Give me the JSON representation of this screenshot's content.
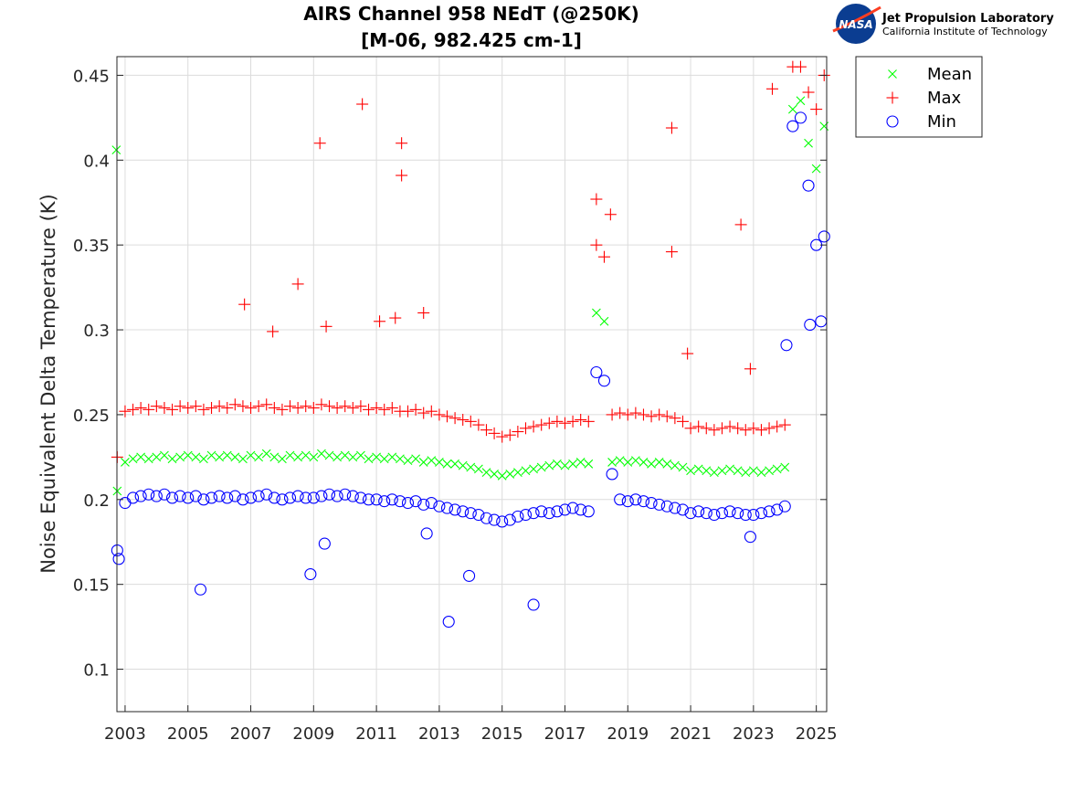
{
  "logo": {
    "line1": "Jet Propulsion Laboratory",
    "line2": "California Institute of Technology",
    "badge": "NASA"
  },
  "chart_data": {
    "type": "scatter",
    "title": [
      "AIRS Channel 958 NEdT (@250K)",
      "[M-06, 982.425 cm-1]"
    ],
    "xlabel": "",
    "ylabel": "Noise Equivalent Delta Temperature (K)",
    "xlim": [
      2002.74,
      2025.33
    ],
    "ylim": [
      0.075,
      0.461
    ],
    "xticks": [
      2003,
      2005,
      2007,
      2009,
      2011,
      2013,
      2015,
      2017,
      2019,
      2021,
      2023,
      2025
    ],
    "yticks": [
      0.1,
      0.15,
      0.2,
      0.25,
      0.3,
      0.35,
      0.4,
      0.45
    ],
    "ytick_labels": [
      "0.1",
      "0.15",
      "0.2",
      "0.25",
      "0.3",
      "0.35",
      "0.4",
      "0.45"
    ],
    "grid": true,
    "legend_placement": "outside-top-right",
    "x": [
      2002.75,
      2003,
      2003.25,
      2003.5,
      2003.75,
      2004,
      2004.25,
      2004.5,
      2004.75,
      2005,
      2005.25,
      2005.5,
      2005.75,
      2006,
      2006.25,
      2006.5,
      2006.75,
      2007,
      2007.25,
      2007.5,
      2007.75,
      2008,
      2008.25,
      2008.5,
      2008.75,
      2009,
      2009.25,
      2009.5,
      2009.75,
      2010,
      2010.25,
      2010.5,
      2010.75,
      2011,
      2011.25,
      2011.5,
      2011.75,
      2012,
      2012.25,
      2012.5,
      2012.75,
      2013,
      2013.25,
      2013.5,
      2013.75,
      2014,
      2014.25,
      2014.5,
      2014.75,
      2015,
      2015.25,
      2015.5,
      2015.75,
      2016,
      2016.25,
      2016.5,
      2016.75,
      2017,
      2017.25,
      2017.5,
      2017.75,
      2018,
      2018.25,
      2018.5,
      2018.75,
      2019,
      2019.25,
      2019.5,
      2019.75,
      2020,
      2020.25,
      2020.5,
      2020.75,
      2021,
      2021.25,
      2021.5,
      2021.75,
      2022,
      2022.25,
      2022.5,
      2022.75,
      2023,
      2023.25,
      2023.5,
      2023.75,
      2024,
      2024.25,
      2024.5,
      2024.75,
      2025,
      2025.25
    ],
    "series": [
      {
        "name": "Mean",
        "marker": "x",
        "color": "#00ff00",
        "values": [
          0.205,
          0.222,
          0.224,
          0.225,
          0.224,
          0.225,
          0.226,
          0.224,
          0.225,
          0.226,
          0.225,
          0.224,
          0.226,
          0.225,
          0.226,
          0.225,
          0.224,
          0.226,
          0.225,
          0.227,
          0.225,
          0.224,
          0.226,
          0.225,
          0.226,
          0.225,
          0.227,
          0.226,
          0.225,
          0.226,
          0.225,
          0.226,
          0.224,
          0.225,
          0.224,
          0.225,
          0.224,
          0.223,
          0.224,
          0.222,
          0.223,
          0.222,
          0.221,
          0.221,
          0.22,
          0.219,
          0.218,
          0.216,
          0.215,
          0.214,
          0.215,
          0.216,
          0.217,
          0.218,
          0.219,
          0.22,
          0.221,
          0.22,
          0.221,
          0.222,
          0.221,
          0.31,
          0.305,
          0.222,
          0.223,
          0.222,
          0.223,
          0.222,
          0.221,
          0.222,
          0.221,
          0.22,
          0.219,
          0.217,
          0.218,
          0.217,
          0.216,
          0.217,
          0.218,
          0.217,
          0.216,
          0.217,
          0.216,
          0.217,
          0.218,
          0.219,
          0.43,
          0.435,
          0.41,
          0.395,
          0.42
        ],
        "outliers": [
          [
            2002.72,
            0.406
          ]
        ]
      },
      {
        "name": "Max",
        "marker": "+",
        "color": "#ff0000",
        "values": [
          0.225,
          0.252,
          0.253,
          0.254,
          0.253,
          0.255,
          0.254,
          0.253,
          0.255,
          0.254,
          0.255,
          0.253,
          0.254,
          0.255,
          0.254,
          0.256,
          0.255,
          0.254,
          0.255,
          0.256,
          0.254,
          0.253,
          0.255,
          0.254,
          0.255,
          0.254,
          0.256,
          0.255,
          0.254,
          0.255,
          0.254,
          0.255,
          0.253,
          0.254,
          0.253,
          0.254,
          0.252,
          0.252,
          0.253,
          0.251,
          0.252,
          0.25,
          0.249,
          0.248,
          0.247,
          0.246,
          0.244,
          0.241,
          0.239,
          0.237,
          0.238,
          0.24,
          0.242,
          0.243,
          0.244,
          0.245,
          0.246,
          0.245,
          0.246,
          0.247,
          0.246,
          0.35,
          0.343,
          0.25,
          0.251,
          0.25,
          0.251,
          0.25,
          0.249,
          0.25,
          0.249,
          0.248,
          0.246,
          0.242,
          0.243,
          0.242,
          0.241,
          0.242,
          0.243,
          0.242,
          0.241,
          0.242,
          0.241,
          0.242,
          0.243,
          0.244,
          0.455,
          0.455,
          0.44,
          0.43,
          0.45
        ],
        "outliers": [
          [
            2006.8,
            0.315
          ],
          [
            2007.7,
            0.299
          ],
          [
            2008.5,
            0.327
          ],
          [
            2009.2,
            0.41
          ],
          [
            2009.4,
            0.302
          ],
          [
            2010.55,
            0.433
          ],
          [
            2011.1,
            0.305
          ],
          [
            2011.6,
            0.307
          ],
          [
            2011.8,
            0.41
          ],
          [
            2011.8,
            0.391
          ],
          [
            2012.5,
            0.31
          ],
          [
            2018.0,
            0.377
          ],
          [
            2018.45,
            0.368
          ],
          [
            2020.4,
            0.419
          ],
          [
            2020.4,
            0.346
          ],
          [
            2020.9,
            0.286
          ],
          [
            2022.6,
            0.362
          ],
          [
            2022.9,
            0.277
          ],
          [
            2023.6,
            0.442
          ]
        ]
      },
      {
        "name": "Min",
        "marker": "o",
        "color": "#0000ff",
        "values": [
          0.17,
          0.198,
          0.201,
          0.202,
          0.203,
          0.202,
          0.203,
          0.201,
          0.202,
          0.201,
          0.202,
          0.2,
          0.201,
          0.202,
          0.201,
          0.202,
          0.2,
          0.201,
          0.202,
          0.203,
          0.201,
          0.2,
          0.201,
          0.202,
          0.201,
          0.201,
          0.202,
          0.203,
          0.202,
          0.203,
          0.202,
          0.201,
          0.2,
          0.2,
          0.199,
          0.2,
          0.199,
          0.198,
          0.199,
          0.197,
          0.198,
          0.196,
          0.195,
          0.194,
          0.193,
          0.192,
          0.191,
          0.189,
          0.188,
          0.187,
          0.188,
          0.19,
          0.191,
          0.192,
          0.193,
          0.192,
          0.193,
          0.194,
          0.195,
          0.194,
          0.193,
          0.275,
          0.27,
          0.215,
          0.2,
          0.199,
          0.2,
          0.199,
          0.198,
          0.197,
          0.196,
          0.195,
          0.194,
          0.192,
          0.193,
          0.192,
          0.191,
          0.192,
          0.193,
          0.192,
          0.191,
          0.191,
          0.192,
          0.193,
          0.194,
          0.196,
          0.42,
          0.425,
          0.385,
          0.35,
          0.355
        ],
        "outliers": [
          [
            2002.8,
            0.165
          ],
          [
            2005.4,
            0.147
          ],
          [
            2008.9,
            0.156
          ],
          [
            2009.35,
            0.174
          ],
          [
            2012.6,
            0.18
          ],
          [
            2013.3,
            0.128
          ],
          [
            2013.95,
            0.155
          ],
          [
            2016.0,
            0.138
          ],
          [
            2022.9,
            0.178
          ],
          [
            2024.05,
            0.291
          ],
          [
            2024.8,
            0.303
          ],
          [
            2025.15,
            0.305
          ]
        ]
      }
    ]
  }
}
